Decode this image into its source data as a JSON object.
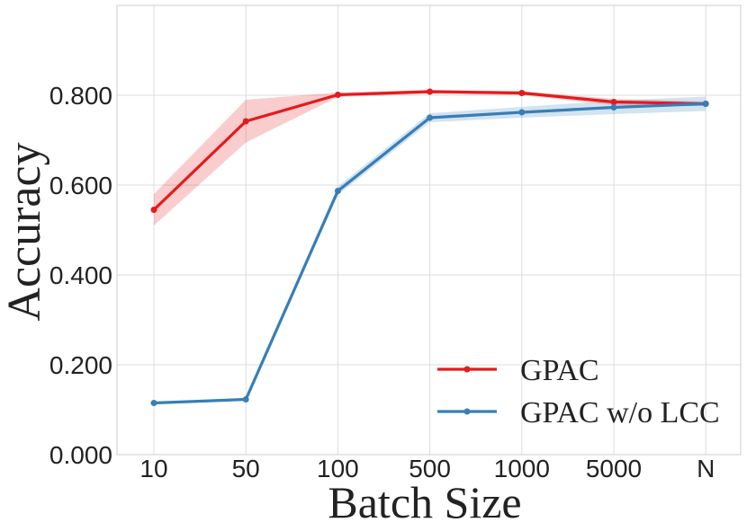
{
  "chart_data": {
    "type": "line",
    "title": "",
    "xlabel": "Batch Size",
    "ylabel": "Accuracy",
    "categories": [
      "10",
      "50",
      "100",
      "500",
      "1000",
      "5000",
      "N"
    ],
    "y_ticks": [
      "0.000",
      "0.200",
      "0.400",
      "0.600",
      "0.800"
    ],
    "ylim": [
      0,
      1.0
    ],
    "grid": true,
    "legend_position": "lower-right",
    "series": [
      {
        "name": "GPAC",
        "color": "#e41a1c",
        "values": [
          0.545,
          0.742,
          0.801,
          0.808,
          0.805,
          0.785,
          0.781
        ],
        "lower": [
          0.51,
          0.695,
          0.796,
          0.803,
          0.8,
          0.778,
          0.776
        ],
        "upper": [
          0.58,
          0.79,
          0.806,
          0.812,
          0.809,
          0.792,
          0.786
        ]
      },
      {
        "name": "GPAC w/o LCC",
        "color": "#377eb8",
        "values": [
          0.115,
          0.123,
          0.587,
          0.75,
          0.762,
          0.773,
          0.781
        ],
        "lower": [
          0.112,
          0.12,
          0.578,
          0.74,
          0.75,
          0.758,
          0.765
        ],
        "upper": [
          0.118,
          0.126,
          0.597,
          0.76,
          0.774,
          0.788,
          0.797
        ]
      }
    ]
  }
}
